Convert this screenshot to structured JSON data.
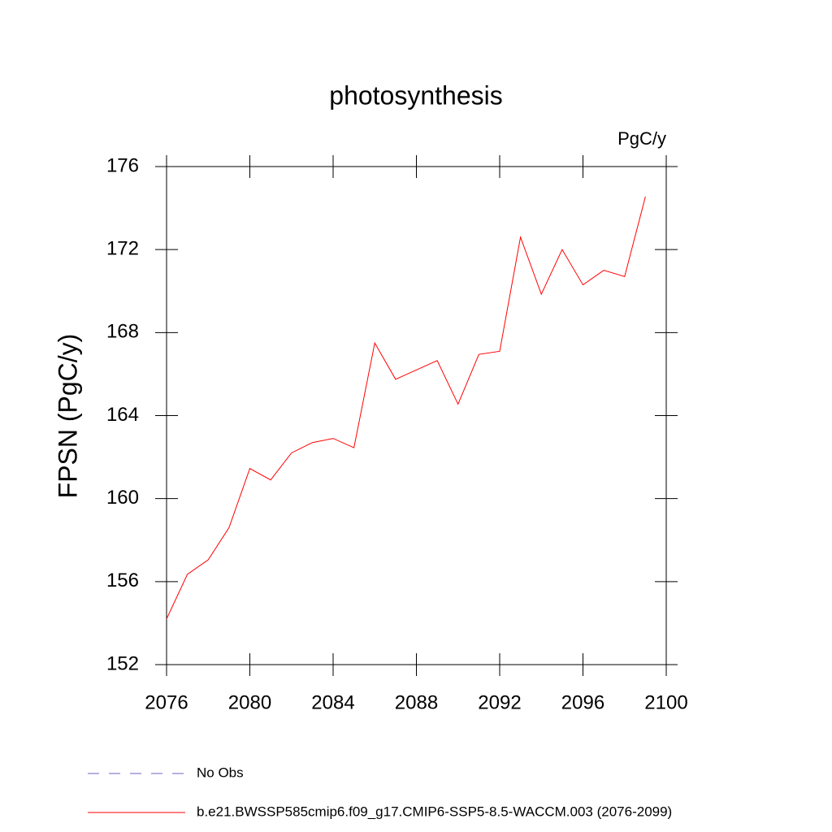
{
  "chart_data": {
    "type": "line",
    "title": "photosynthesis",
    "subtitle": "PgC/y",
    "y_label": "FPSN  (PgC/y)",
    "x": [
      2076,
      2077,
      2078,
      2079,
      2080,
      2081,
      2082,
      2083,
      2084,
      2085,
      2086,
      2087,
      2088,
      2089,
      2090,
      2091,
      2092,
      2093,
      2094,
      2095,
      2096,
      2097,
      2098,
      2099
    ],
    "series": [
      {
        "name": "b.e21.BWSSP585cmip6.f09_g17.CMIP6-SSP5-8.5-WACCM.003 (2076-2099)",
        "color": "#ff0000",
        "values": [
          154.2,
          156.35,
          157.05,
          158.6,
          161.45,
          160.9,
          162.2,
          162.7,
          162.9,
          162.45,
          167.5,
          165.75,
          166.2,
          166.65,
          164.55,
          166.95,
          167.1,
          172.6,
          169.85,
          172.0,
          170.3,
          171.0,
          170.7,
          174.55
        ]
      }
    ],
    "legend_extra": [
      {
        "name": "No Obs",
        "color": "#7060c0",
        "dashed": true
      }
    ],
    "xlim": [
      2076,
      2100
    ],
    "xticks": [
      2076,
      2080,
      2084,
      2088,
      2092,
      2096,
      2100
    ],
    "ylim": [
      152,
      176
    ],
    "yticks": [
      152,
      156,
      160,
      164,
      168,
      172,
      176
    ]
  }
}
